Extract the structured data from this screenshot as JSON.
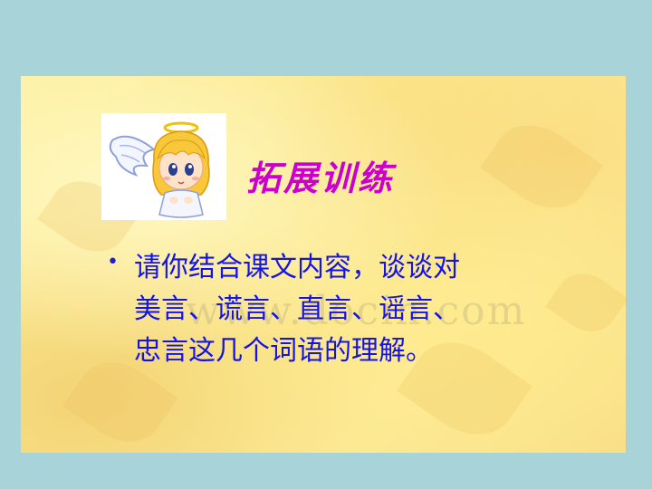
{
  "slide": {
    "title": "拓展训练",
    "bullet_lines": [
      "请你结合课文内容，谈谈对",
      "美言、谎言、直言、谣言、",
      "忠言这几个词语的理解。"
    ],
    "watermark": "www.docin.com",
    "bullet_symbol": "•"
  },
  "icons": {
    "angel": "angel-cartoon-icon"
  },
  "colors": {
    "background": "#a8d3d8",
    "title": "#cc00cc",
    "body_text": "#1414e6"
  }
}
